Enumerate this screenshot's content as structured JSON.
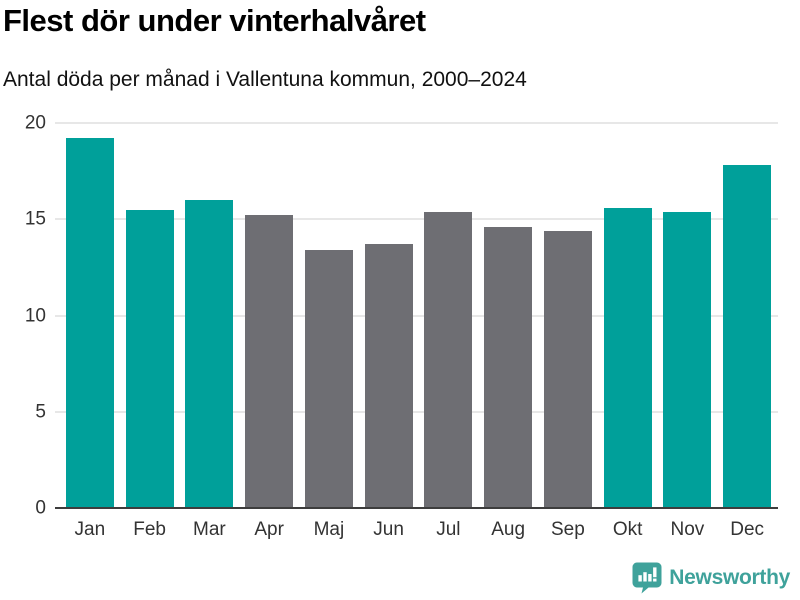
{
  "header": {
    "title": "Flest dör under vinterhalvåret",
    "subtitle": "Antal döda per månad i Vallentuna kommun, 2000–2024"
  },
  "chart_data": {
    "type": "bar",
    "title": "Flest dör under vinterhalvåret",
    "subtitle": "Antal döda per månad i Vallentuna kommun, 2000–2024",
    "categories": [
      "Jan",
      "Feb",
      "Mar",
      "Apr",
      "Maj",
      "Jun",
      "Jul",
      "Aug",
      "Sep",
      "Okt",
      "Nov",
      "Dec"
    ],
    "values": [
      19.2,
      15.5,
      16.0,
      15.2,
      13.4,
      13.7,
      15.4,
      14.6,
      14.4,
      15.6,
      15.4,
      17.8
    ],
    "bar_colors": [
      "#00a09a",
      "#00a09a",
      "#00a09a",
      "#6e6e73",
      "#6e6e73",
      "#6e6e73",
      "#6e6e73",
      "#6e6e73",
      "#6e6e73",
      "#00a09a",
      "#00a09a",
      "#00a09a"
    ],
    "xlabel": "",
    "ylabel": "",
    "ylim": [
      0,
      20
    ],
    "yticks": [
      0,
      5,
      10,
      15,
      20
    ],
    "grid": true,
    "legend": "none",
    "colors": {
      "winter_teal": "#00a09a",
      "summer_gray": "#6e6e73",
      "gridline": "#e7e7e7",
      "axis_line": "#3d3d3d"
    }
  },
  "footer": {
    "brand": "Newsworthy",
    "brand_color": "#3fa29b"
  }
}
